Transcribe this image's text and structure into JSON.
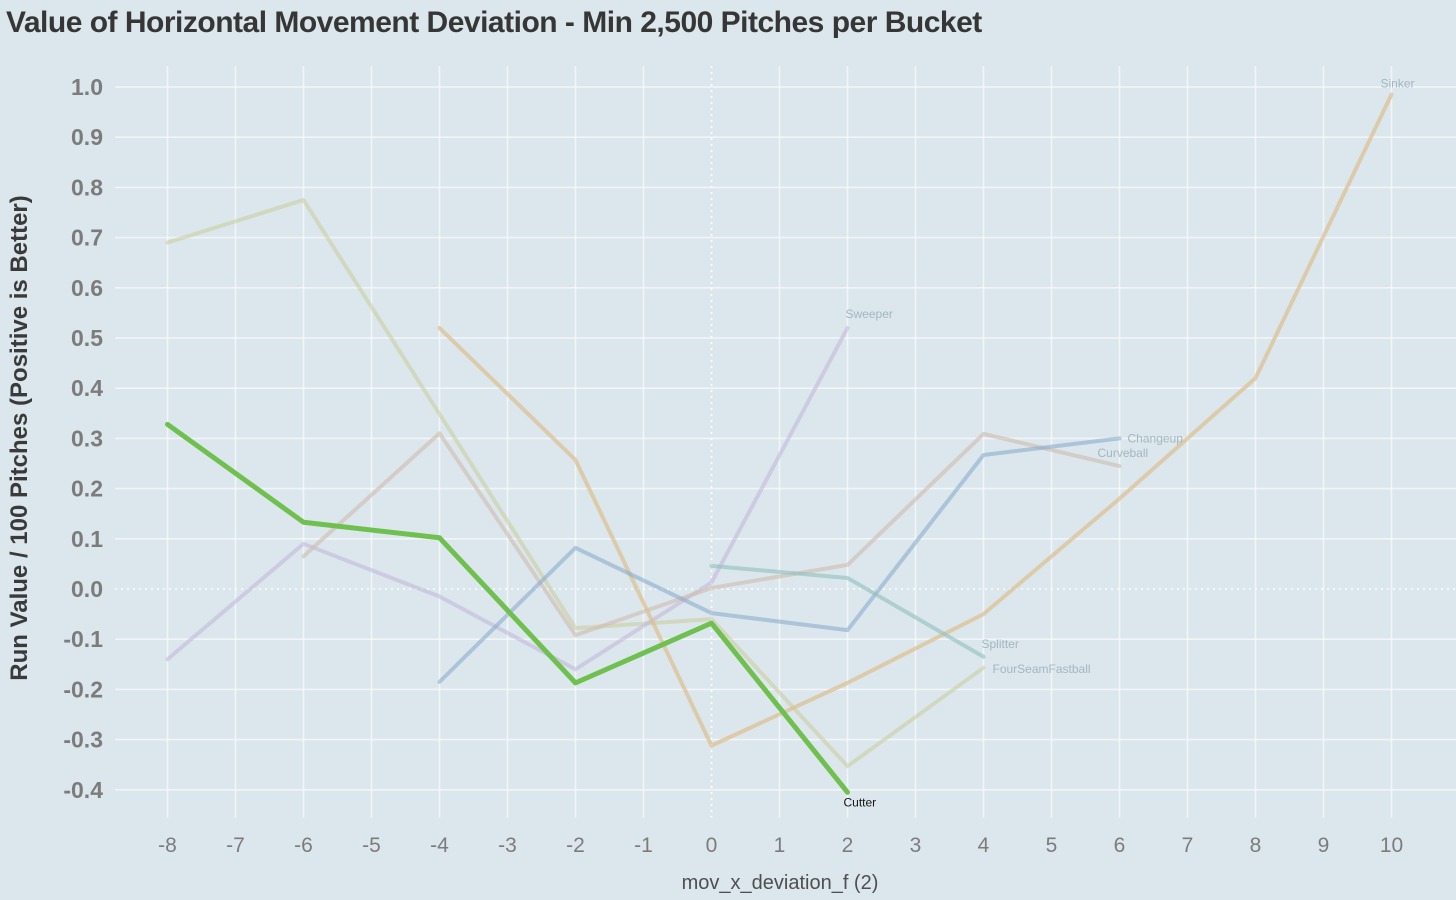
{
  "title": "Value of Horizontal Movement Deviation - Min 2,500 Pitches per Bucket",
  "colors": {
    "background": "#dbe7ed",
    "grid": "#ffffff",
    "title_text": "#363636",
    "axis_title_text": "#3a3a3a",
    "tick_text": "#7c7c7c",
    "dim_label_text": "#9badb6",
    "highlight_label_text": "#151515"
  },
  "chart_data": {
    "type": "line",
    "title": "Value of Horizontal Movement Deviation - Min 2,500 Pitches per Bucket",
    "xlabel": "mov_x_deviation_f (2)",
    "ylabel": "Run Value / 100 Pitches (Positive is Better)",
    "xlim": [
      -8.8,
      10.95
    ],
    "ylim": [
      -0.46,
      1.04
    ],
    "x_ticks": [
      -8,
      -7,
      -6,
      -5,
      -4,
      -3,
      -2,
      -1,
      0,
      1,
      2,
      3,
      4,
      5,
      6,
      7,
      8,
      9,
      10
    ],
    "y_ticks": [
      -0.4,
      -0.3,
      -0.2,
      -0.1,
      0.0,
      0.1,
      0.2,
      0.3,
      0.4,
      0.5,
      0.6,
      0.7,
      0.8,
      0.9,
      1.0
    ],
    "grid": true,
    "zero_lines_dotted": true,
    "legend_position": "line-end-labels",
    "series": [
      {
        "name": "FourSeamFastball",
        "color": "#cbcc9b",
        "opacity": 0.55,
        "width": 4,
        "points": [
          [
            -8,
            0.69
          ],
          [
            -6,
            0.775
          ],
          [
            -2,
            -0.078
          ],
          [
            0,
            -0.06
          ],
          [
            2,
            -0.353
          ],
          [
            4,
            -0.157
          ]
        ],
        "label": {
          "dx": 9,
          "dy": 5,
          "anchor": "start",
          "dim": true
        }
      },
      {
        "name": "Sweeper",
        "color": "#c1b5d8",
        "opacity": 0.55,
        "width": 4,
        "points": [
          [
            -8,
            -0.14
          ],
          [
            -6,
            0.09
          ],
          [
            -4,
            -0.015
          ],
          [
            -2,
            -0.16
          ],
          [
            0,
            0.013
          ],
          [
            2,
            0.52
          ]
        ],
        "label": {
          "dx": -2,
          "dy": -10,
          "anchor": "start",
          "dim": true
        }
      },
      {
        "name": "Curveball",
        "color": "#cfbcae",
        "opacity": 0.6,
        "width": 4,
        "points": [
          [
            -6,
            0.065
          ],
          [
            -4,
            0.31
          ],
          [
            -2,
            -0.092
          ],
          [
            0,
            0.002
          ],
          [
            2,
            0.048
          ],
          [
            4,
            0.309
          ],
          [
            6,
            0.245
          ]
        ],
        "label": {
          "dx": -22,
          "dy": -9,
          "anchor": "start",
          "dim": true
        }
      },
      {
        "name": "Sinker",
        "color": "#ddbf8e",
        "opacity": 0.7,
        "width": 4,
        "points": [
          [
            -4,
            0.52
          ],
          [
            -2,
            0.257
          ],
          [
            0,
            -0.312
          ],
          [
            2,
            -0.187
          ],
          [
            4,
            -0.05
          ],
          [
            6,
            0.18
          ],
          [
            8,
            0.42
          ],
          [
            10,
            0.985
          ]
        ],
        "label": {
          "dx": -11,
          "dy": -7,
          "anchor": "start",
          "dim": true
        }
      },
      {
        "name": "Changeup",
        "color": "#85a7c8",
        "opacity": 0.55,
        "width": 4,
        "points": [
          [
            -4,
            -0.185
          ],
          [
            -2,
            0.082
          ],
          [
            0,
            -0.048
          ],
          [
            2,
            -0.082
          ],
          [
            4,
            0.267
          ],
          [
            6,
            0.3
          ]
        ],
        "label": {
          "dx": 8,
          "dy": 4,
          "anchor": "start",
          "dim": true
        }
      },
      {
        "name": "Splitter",
        "color": "#90bfbb",
        "opacity": 0.6,
        "width": 4,
        "points": [
          [
            0,
            0.046
          ],
          [
            2,
            0.022
          ],
          [
            4,
            -0.135
          ]
        ],
        "label": {
          "dx": -2,
          "dy": -9,
          "anchor": "start",
          "dim": true
        }
      },
      {
        "name": "Cutter",
        "color": "#6fc04e",
        "opacity": 1.0,
        "width": 5,
        "points": [
          [
            -8,
            0.328
          ],
          [
            -6,
            0.133
          ],
          [
            -4,
            0.102
          ],
          [
            -2,
            -0.187
          ],
          [
            0,
            -0.068
          ],
          [
            2,
            -0.405
          ]
        ],
        "label": {
          "dx": -4,
          "dy": 14,
          "anchor": "start",
          "dim": false
        }
      }
    ]
  }
}
